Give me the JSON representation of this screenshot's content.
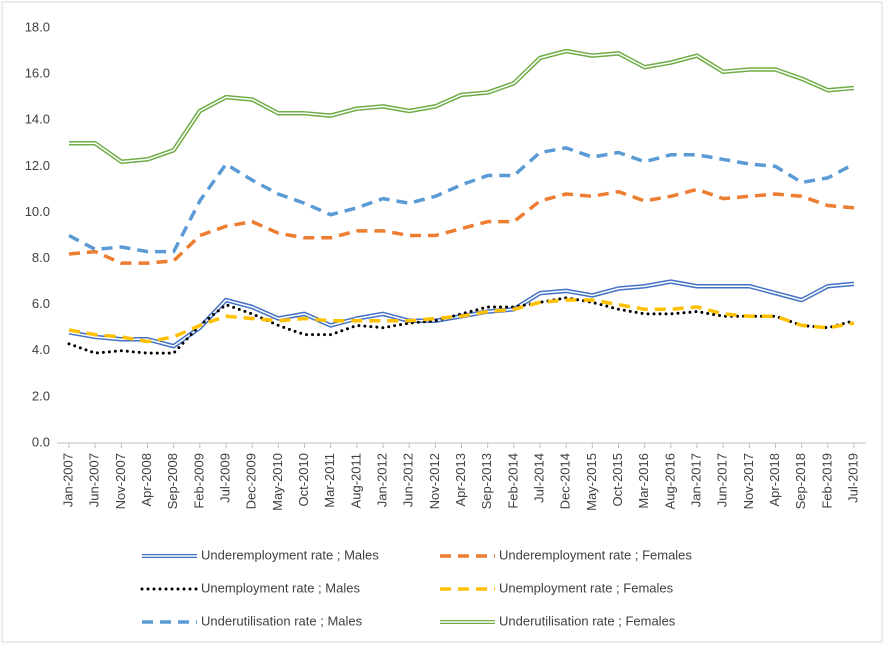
{
  "chart_data": {
    "type": "line",
    "categories": [
      "Jan-2007",
      "Jun-2007",
      "Nov-2007",
      "Apr-2008",
      "Sep-2008",
      "Feb-2009",
      "Jul-2009",
      "Dec-2009",
      "May-2010",
      "Oct-2010",
      "Mar-2011",
      "Aug-2011",
      "Jan-2012",
      "Jun-2012",
      "Nov-2012",
      "Apr-2013",
      "Sep-2013",
      "Feb-2014",
      "Jul-2014",
      "Dec-2014",
      "May-2015",
      "Oct-2015",
      "Mar-2016",
      "Aug-2016",
      "Jan-2017",
      "Jun-2017",
      "Nov-2017",
      "Apr-2018",
      "Sep-2018",
      "Feb-2019",
      "Jul-2019"
    ],
    "ylim": [
      0,
      18
    ],
    "yticks": [
      {
        "value": 0,
        "label": "0.0"
      },
      {
        "value": 2,
        "label": "2.0"
      },
      {
        "value": 4,
        "label": "4.0"
      },
      {
        "value": 6,
        "label": "6.0"
      },
      {
        "value": 8,
        "label": "8.0"
      },
      {
        "value": 10,
        "label": "10.0"
      },
      {
        "value": 12,
        "label": "12.0"
      },
      {
        "value": 14,
        "label": "14.0"
      },
      {
        "value": 16,
        "label": "16.0"
      },
      {
        "value": 18,
        "label": "18.0"
      }
    ],
    "grid": false,
    "series": [
      {
        "name": "Underemployment rate ;  Males",
        "color": "#4472c4",
        "style": "double",
        "values": [
          4.8,
          4.6,
          4.5,
          4.5,
          4.2,
          5.0,
          6.2,
          5.9,
          5.4,
          5.6,
          5.1,
          5.4,
          5.6,
          5.3,
          5.3,
          5.5,
          5.7,
          5.8,
          6.5,
          6.6,
          6.4,
          6.7,
          6.8,
          7.0,
          6.8,
          6.8,
          6.8,
          6.5,
          6.2,
          6.8,
          6.9
        ]
      },
      {
        "name": "Underemployment rate ;  Females",
        "color": "#ed7d31",
        "style": "dashed",
        "values": [
          8.2,
          8.3,
          7.8,
          7.8,
          7.9,
          9.0,
          9.4,
          9.6,
          9.1,
          8.9,
          8.9,
          9.2,
          9.2,
          9.0,
          9.0,
          9.3,
          9.6,
          9.6,
          10.5,
          10.8,
          10.7,
          10.9,
          10.5,
          10.7,
          11.0,
          10.6,
          10.7,
          10.8,
          10.7,
          10.3,
          10.2
        ]
      },
      {
        "name": "Unemployment rate ;   Males",
        "color": "#000000",
        "style": "dotted",
        "values": [
          4.3,
          3.9,
          4.0,
          3.9,
          3.9,
          5.1,
          6.0,
          5.6,
          5.1,
          4.7,
          4.7,
          5.1,
          5.0,
          5.2,
          5.3,
          5.6,
          5.9,
          5.9,
          6.1,
          6.3,
          6.1,
          5.8,
          5.6,
          5.6,
          5.7,
          5.5,
          5.5,
          5.5,
          5.1,
          5.0,
          5.3
        ]
      },
      {
        "name": "Unemployment rate ; Females",
        "color": "#ffc000",
        "style": "dashed",
        "values": [
          4.9,
          4.7,
          4.6,
          4.4,
          4.6,
          5.1,
          5.5,
          5.4,
          5.3,
          5.4,
          5.3,
          5.3,
          5.3,
          5.3,
          5.4,
          5.5,
          5.7,
          5.8,
          6.1,
          6.2,
          6.2,
          6.0,
          5.8,
          5.8,
          5.9,
          5.6,
          5.5,
          5.5,
          5.1,
          5.0,
          5.2
        ]
      },
      {
        "name": "Underutilisation rate ;  Males",
        "color": "#5b9bd5",
        "style": "dashed",
        "values": [
          9.0,
          8.4,
          8.5,
          8.3,
          8.3,
          10.5,
          12.1,
          11.4,
          10.8,
          10.4,
          9.9,
          10.2,
          10.6,
          10.4,
          10.7,
          11.2,
          11.6,
          11.6,
          12.6,
          12.8,
          12.4,
          12.6,
          12.2,
          12.5,
          12.5,
          12.3,
          12.1,
          12.0,
          11.3,
          11.5,
          12.1
        ]
      },
      {
        "name": "Underutilisation rate ;  Females",
        "color": "#70ad47",
        "style": "double",
        "values": [
          13.0,
          13.0,
          12.2,
          12.3,
          12.7,
          14.4,
          15.0,
          14.9,
          14.3,
          14.3,
          14.2,
          14.5,
          14.6,
          14.4,
          14.6,
          15.1,
          15.2,
          15.6,
          16.7,
          17.0,
          16.8,
          16.9,
          16.3,
          16.5,
          16.8,
          16.1,
          16.2,
          16.2,
          15.8,
          15.3,
          15.4
        ]
      }
    ]
  }
}
